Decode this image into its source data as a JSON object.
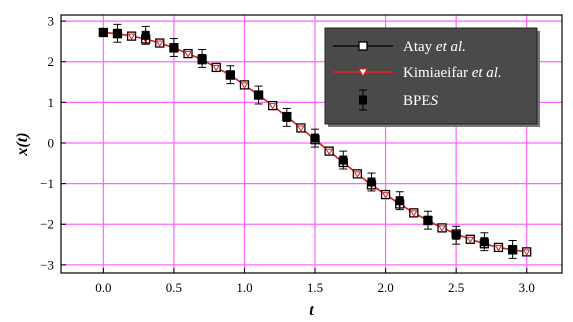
{
  "chart_data": {
    "type": "line",
    "xlabel": "t",
    "ylabel": "x(t)",
    "xlim": [
      -0.3,
      3.25
    ],
    "ylim": [
      -3.2,
      3.15
    ],
    "x_ticks": [
      "0.0",
      "0.5",
      "1.0",
      "1.5",
      "2.0",
      "2.5",
      "3.0"
    ],
    "y_ticks": [
      "3",
      "2",
      "1",
      "0",
      "−1",
      "−2",
      "−3"
    ],
    "grid": true,
    "grid_color": "#ff66ff",
    "legend_position": "top-right",
    "legend": [
      {
        "parts": [
          {
            "text": "Atay ",
            "italic": false
          },
          {
            "text": "et al.",
            "italic": true
          }
        ]
      },
      {
        "parts": [
          {
            "text": "Kimiaeifar ",
            "italic": false
          },
          {
            "text": "et al.",
            "italic": true
          }
        ]
      },
      {
        "parts": [
          {
            "text": "BPE",
            "italic": false
          },
          {
            "text": "S",
            "italic": true
          }
        ]
      }
    ],
    "series": [
      {
        "name": "Atay et al.",
        "style": "line-open-square",
        "color": "#000000",
        "x": [
          0.0,
          0.1,
          0.2,
          0.3,
          0.4,
          0.5,
          0.6,
          0.7,
          0.8,
          0.9,
          1.0,
          1.1,
          1.2,
          1.3,
          1.4,
          1.5,
          1.6,
          1.7,
          1.8,
          1.9,
          2.0,
          2.1,
          2.2,
          2.3,
          2.4,
          2.5,
          2.6,
          2.7,
          2.8,
          2.9,
          3.0
        ],
        "y": [
          2.72,
          2.69,
          2.63,
          2.56,
          2.46,
          2.34,
          2.2,
          2.05,
          1.86,
          1.67,
          1.43,
          1.18,
          0.92,
          0.65,
          0.37,
          0.08,
          -0.2,
          -0.48,
          -0.76,
          -1.03,
          -1.27,
          -1.5,
          -1.72,
          -1.91,
          -2.09,
          -2.24,
          -2.37,
          -2.48,
          -2.57,
          -2.63,
          -2.68
        ]
      },
      {
        "name": "Kimiaeifar et al.",
        "style": "line-open-triangle",
        "color": "#e0201e",
        "x": [
          0.0,
          0.1,
          0.2,
          0.3,
          0.4,
          0.5,
          0.6,
          0.7,
          0.8,
          0.9,
          1.0,
          1.1,
          1.2,
          1.3,
          1.4,
          1.5,
          1.6,
          1.7,
          1.8,
          1.9,
          2.0,
          2.1,
          2.2,
          2.3,
          2.4,
          2.5,
          2.6,
          2.7,
          2.8,
          2.9,
          3.0
        ],
        "y": [
          2.72,
          2.69,
          2.63,
          2.56,
          2.46,
          2.34,
          2.2,
          2.05,
          1.86,
          1.67,
          1.43,
          1.18,
          0.92,
          0.65,
          0.37,
          0.08,
          -0.2,
          -0.48,
          -0.76,
          -1.03,
          -1.27,
          -1.5,
          -1.72,
          -1.91,
          -2.09,
          -2.24,
          -2.37,
          -2.48,
          -2.57,
          -2.63,
          -2.68
        ]
      },
      {
        "name": "BPES",
        "style": "filled-square-errorbar",
        "color": "#000000",
        "x": [
          0.0,
          0.1,
          0.3,
          0.5,
          0.7,
          0.9,
          1.1,
          1.3,
          1.5,
          1.7,
          1.9,
          2.1,
          2.3,
          2.5,
          2.7,
          2.9
        ],
        "y": [
          2.72,
          2.7,
          2.65,
          2.35,
          2.08,
          1.68,
          1.18,
          0.63,
          0.12,
          -0.42,
          -0.96,
          -1.42,
          -1.9,
          -2.27,
          -2.43,
          -2.62
        ],
        "yerr": [
          0.0,
          0.22,
          0.22,
          0.22,
          0.22,
          0.22,
          0.22,
          0.22,
          0.22,
          0.22,
          0.22,
          0.22,
          0.22,
          0.22,
          0.22,
          0.22
        ]
      }
    ]
  }
}
